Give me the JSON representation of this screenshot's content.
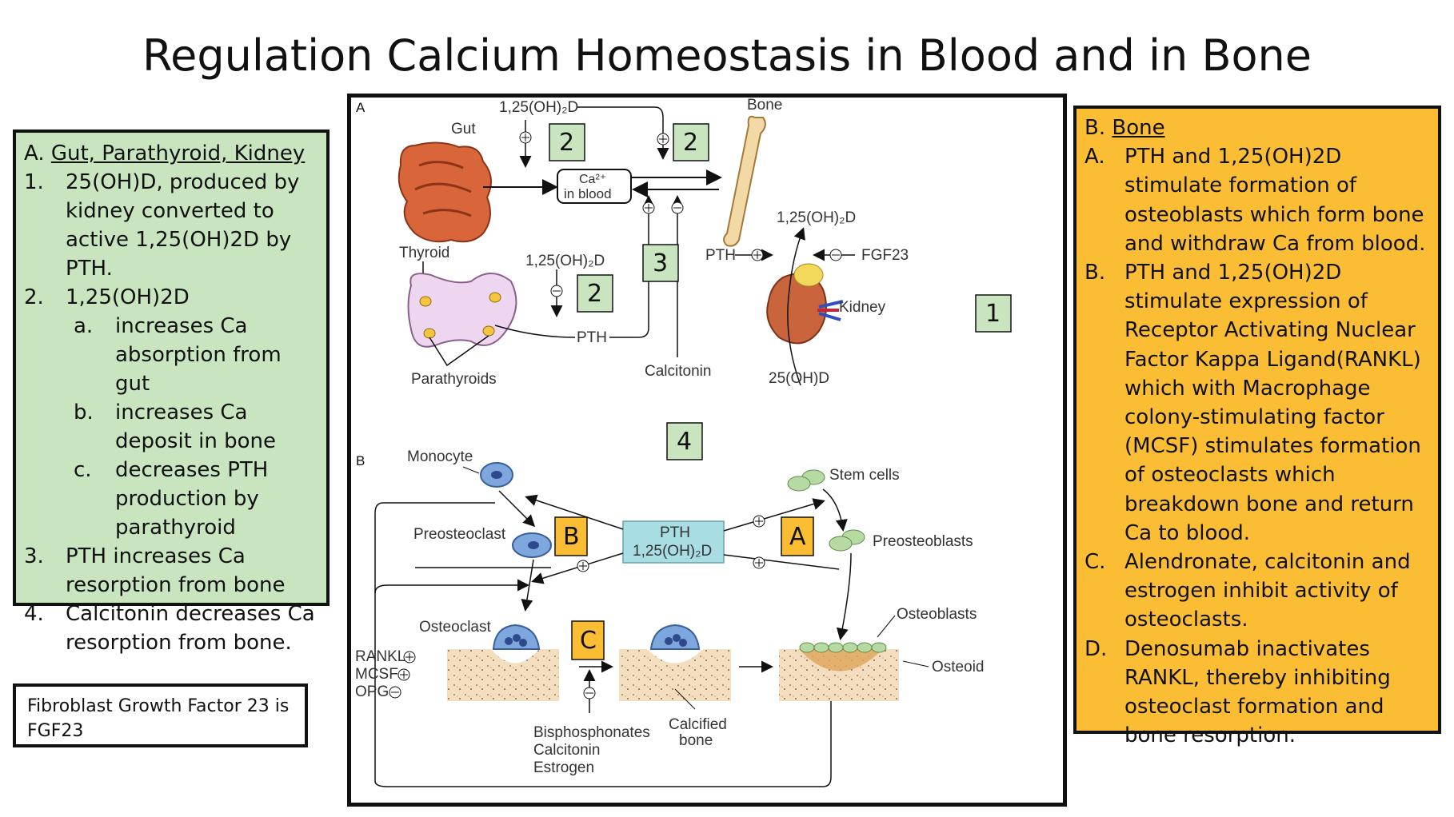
{
  "slide": {
    "title": "Regulation Calcium Homeostasis in Blood and in Bone"
  },
  "left_panel": {
    "heading_prefix": "A. ",
    "heading": "Gut, Parathyroid, Kidney",
    "items": [
      {
        "num": "1.",
        "text": "25(OH)D, produced by kidney converted to active 1,25(OH)2D by PTH."
      },
      {
        "num": "2.",
        "text": "1,25(OH)2D"
      },
      {
        "num": "a.",
        "text": "increases Ca absorption from gut"
      },
      {
        "num": "b.",
        "text": "increases Ca deposit in bone"
      },
      {
        "num": "c.",
        "text": "decreases PTH production by parathyroid"
      },
      {
        "num": "3.",
        "text": "PTH increases Ca resorption from bone"
      },
      {
        "num": "4.",
        "text": "Calcitonin decreases Ca resorption from bone."
      }
    ]
  },
  "fgf_note": "Fibroblast Growth Factor 23 is FGF23",
  "right_panel": {
    "heading_prefix": "B. ",
    "heading": "Bone",
    "items": [
      {
        "num": "A.",
        "text": "PTH and 1,25(OH)2D stimulate formation of osteoblasts which form bone and withdraw Ca from blood."
      },
      {
        "num": "B.",
        "text": "PTH and 1,25(OH)2D stimulate expression of Receptor Activating Nuclear Factor Kappa Ligand(RANKL) which with Macrophage colony-stimulating factor (MCSF) stimulates formation of osteoclasts which breakdown bone and return Ca to blood."
      },
      {
        "num": "C.",
        "text": "Alendronate, calcitonin and estrogen inhibit activity of osteoclasts."
      },
      {
        "num": "D.",
        "text": "Denosumab inactivates RANKL, thereby inhibiting osteoclast formation and bone resorption."
      }
    ]
  },
  "diagram": {
    "panel_a": "A",
    "panel_b": "B",
    "gut": "Gut",
    "vitd_top": "1,25(OH)₂D",
    "bone": "Bone",
    "ca_blood_1": "Ca²⁺",
    "ca_blood_2": "in blood",
    "thyroid": "Thyroid",
    "parathyroids": "Parathyroids",
    "vitd_mid": "1,25(OH)₂D",
    "pth": "PTH",
    "calcitonin": "Calcitonin",
    "vitd_kidney": "1,25(OH)₂D",
    "pth_kidney": "PTH",
    "fgf23": "FGF23",
    "kidney": "Kidney",
    "ohd25": "25(OH)D",
    "monocyte": "Monocyte",
    "stem_cells": "Stem cells",
    "preosteoclast": "Preosteoclast",
    "preosteoblasts": "Preosteoblasts",
    "center_1": "PTH",
    "center_2": "1,25(OH)₂D",
    "osteoclast": "Osteoclast",
    "osteoblasts": "Osteoblasts",
    "osteoid": "Osteoid",
    "rankl": "RANKL",
    "mcsf": "MCSF",
    "opg": "OPG",
    "calcified_1": "Calcified",
    "calcified_2": "bone",
    "drug_1": "Bisphosphonates",
    "drug_2": "Calcitonin",
    "drug_3": "Estrogen",
    "markers": {
      "n2a": "2",
      "n2b": "2",
      "n2c": "2",
      "n3": "3",
      "n1": "1",
      "n4": "4",
      "ba": "A",
      "bb": "B",
      "bc": "C"
    },
    "colors": {
      "green_marker": "#c9e5c0",
      "orange_marker": "#fbbd33",
      "center_box": "#a8dde3",
      "gut": "#d9653b",
      "bone": "#f2d9a6",
      "cell_blue": "#7da7dd",
      "cell_green": "#b7d9a2"
    }
  }
}
